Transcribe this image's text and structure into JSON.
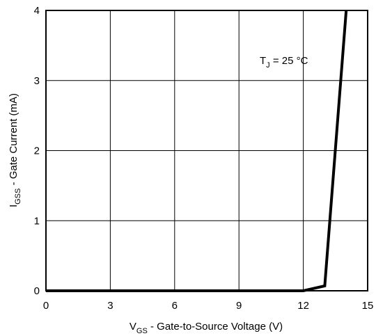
{
  "chart_data": {
    "type": "line",
    "title": "",
    "xlabel": {
      "main": "V",
      "sub": "GS",
      "rest": " - Gate-to-Source Voltage (V)"
    },
    "ylabel": {
      "main": "I",
      "sub": "GSS",
      "rest": " - Gate Current (mA)"
    },
    "xlim": [
      0,
      15
    ],
    "ylim": [
      0,
      4
    ],
    "xticks": [
      0,
      3,
      6,
      9,
      12,
      15
    ],
    "yticks": [
      0,
      1,
      2,
      3,
      4
    ],
    "grid": true,
    "annotation": {
      "main": "T",
      "sub": "J",
      "rest": " = 25 °C"
    },
    "series": [
      {
        "x": [
          0,
          12,
          13,
          14
        ],
        "y": [
          0,
          0,
          0.07,
          4.0
        ]
      }
    ]
  }
}
